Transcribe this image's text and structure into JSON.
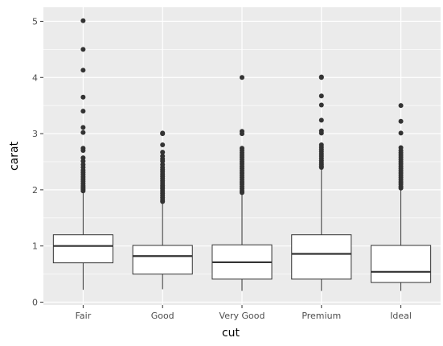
{
  "chart_data": {
    "type": "boxplot",
    "xlabel": "cut",
    "ylabel": "carat",
    "categories": [
      "Fair",
      "Good",
      "Very Good",
      "Premium",
      "Ideal"
    ],
    "ylim": [
      -0.05,
      5.25
    ],
    "yticks": [
      0,
      1,
      2,
      3,
      4,
      5
    ],
    "grid": true,
    "legend": "none",
    "colors": {
      "panel": "#ebebeb",
      "grid": "#ffffff",
      "box_fill": "#ffffff",
      "box_stroke": "#333333",
      "outlier": "#333333"
    },
    "boxes": [
      {
        "category": "Fair",
        "lower_whisker": 0.22,
        "q1": 0.7,
        "median": 1.0,
        "q3": 1.2,
        "upper_whisker": 1.95,
        "outliers": [
          5.01,
          4.5,
          4.13,
          3.65,
          3.4,
          3.11,
          3.02,
          2.74,
          2.7,
          2.57,
          2.51,
          2.45,
          2.4,
          2.35,
          2.31,
          2.27,
          2.23,
          2.19,
          2.15,
          2.11,
          2.07,
          2.04,
          2.01,
          1.98
        ]
      },
      {
        "category": "Good",
        "lower_whisker": 0.23,
        "q1": 0.5,
        "median": 0.82,
        "q3": 1.01,
        "upper_whisker": 1.76,
        "outliers": [
          3.01,
          3.0,
          2.8,
          2.67,
          2.6,
          2.55,
          2.51,
          2.45,
          2.4,
          2.36,
          2.32,
          2.28,
          2.24,
          2.2,
          2.16,
          2.12,
          2.08,
          2.05,
          2.02,
          1.98,
          1.94,
          1.9,
          1.86,
          1.82,
          1.79
        ]
      },
      {
        "category": "Very Good",
        "lower_whisker": 0.2,
        "q1": 0.41,
        "median": 0.71,
        "q3": 1.02,
        "upper_whisker": 1.93,
        "outliers": [
          4.0,
          3.04,
          3.0,
          2.74,
          2.7,
          2.66,
          2.62,
          2.58,
          2.54,
          2.5,
          2.46,
          2.42,
          2.38,
          2.34,
          2.3,
          2.26,
          2.22,
          2.18,
          2.14,
          2.1,
          2.06,
          2.02,
          1.98,
          1.95
        ]
      },
      {
        "category": "Premium",
        "lower_whisker": 0.2,
        "q1": 0.41,
        "median": 0.86,
        "q3": 1.2,
        "upper_whisker": 2.38,
        "outliers": [
          4.01,
          4.0,
          3.67,
          3.51,
          3.24,
          3.05,
          3.01,
          2.8,
          2.76,
          2.72,
          2.68,
          2.64,
          2.6,
          2.56,
          2.52,
          2.48,
          2.45,
          2.42,
          2.4
        ]
      },
      {
        "category": "Ideal",
        "lower_whisker": 0.2,
        "q1": 0.35,
        "median": 0.54,
        "q3": 1.01,
        "upper_whisker": 2.0,
        "outliers": [
          3.5,
          3.22,
          3.01,
          2.75,
          2.7,
          2.66,
          2.62,
          2.58,
          2.54,
          2.5,
          2.46,
          2.42,
          2.38,
          2.34,
          2.3,
          2.26,
          2.22,
          2.18,
          2.14,
          2.1,
          2.06,
          2.03
        ]
      }
    ]
  }
}
